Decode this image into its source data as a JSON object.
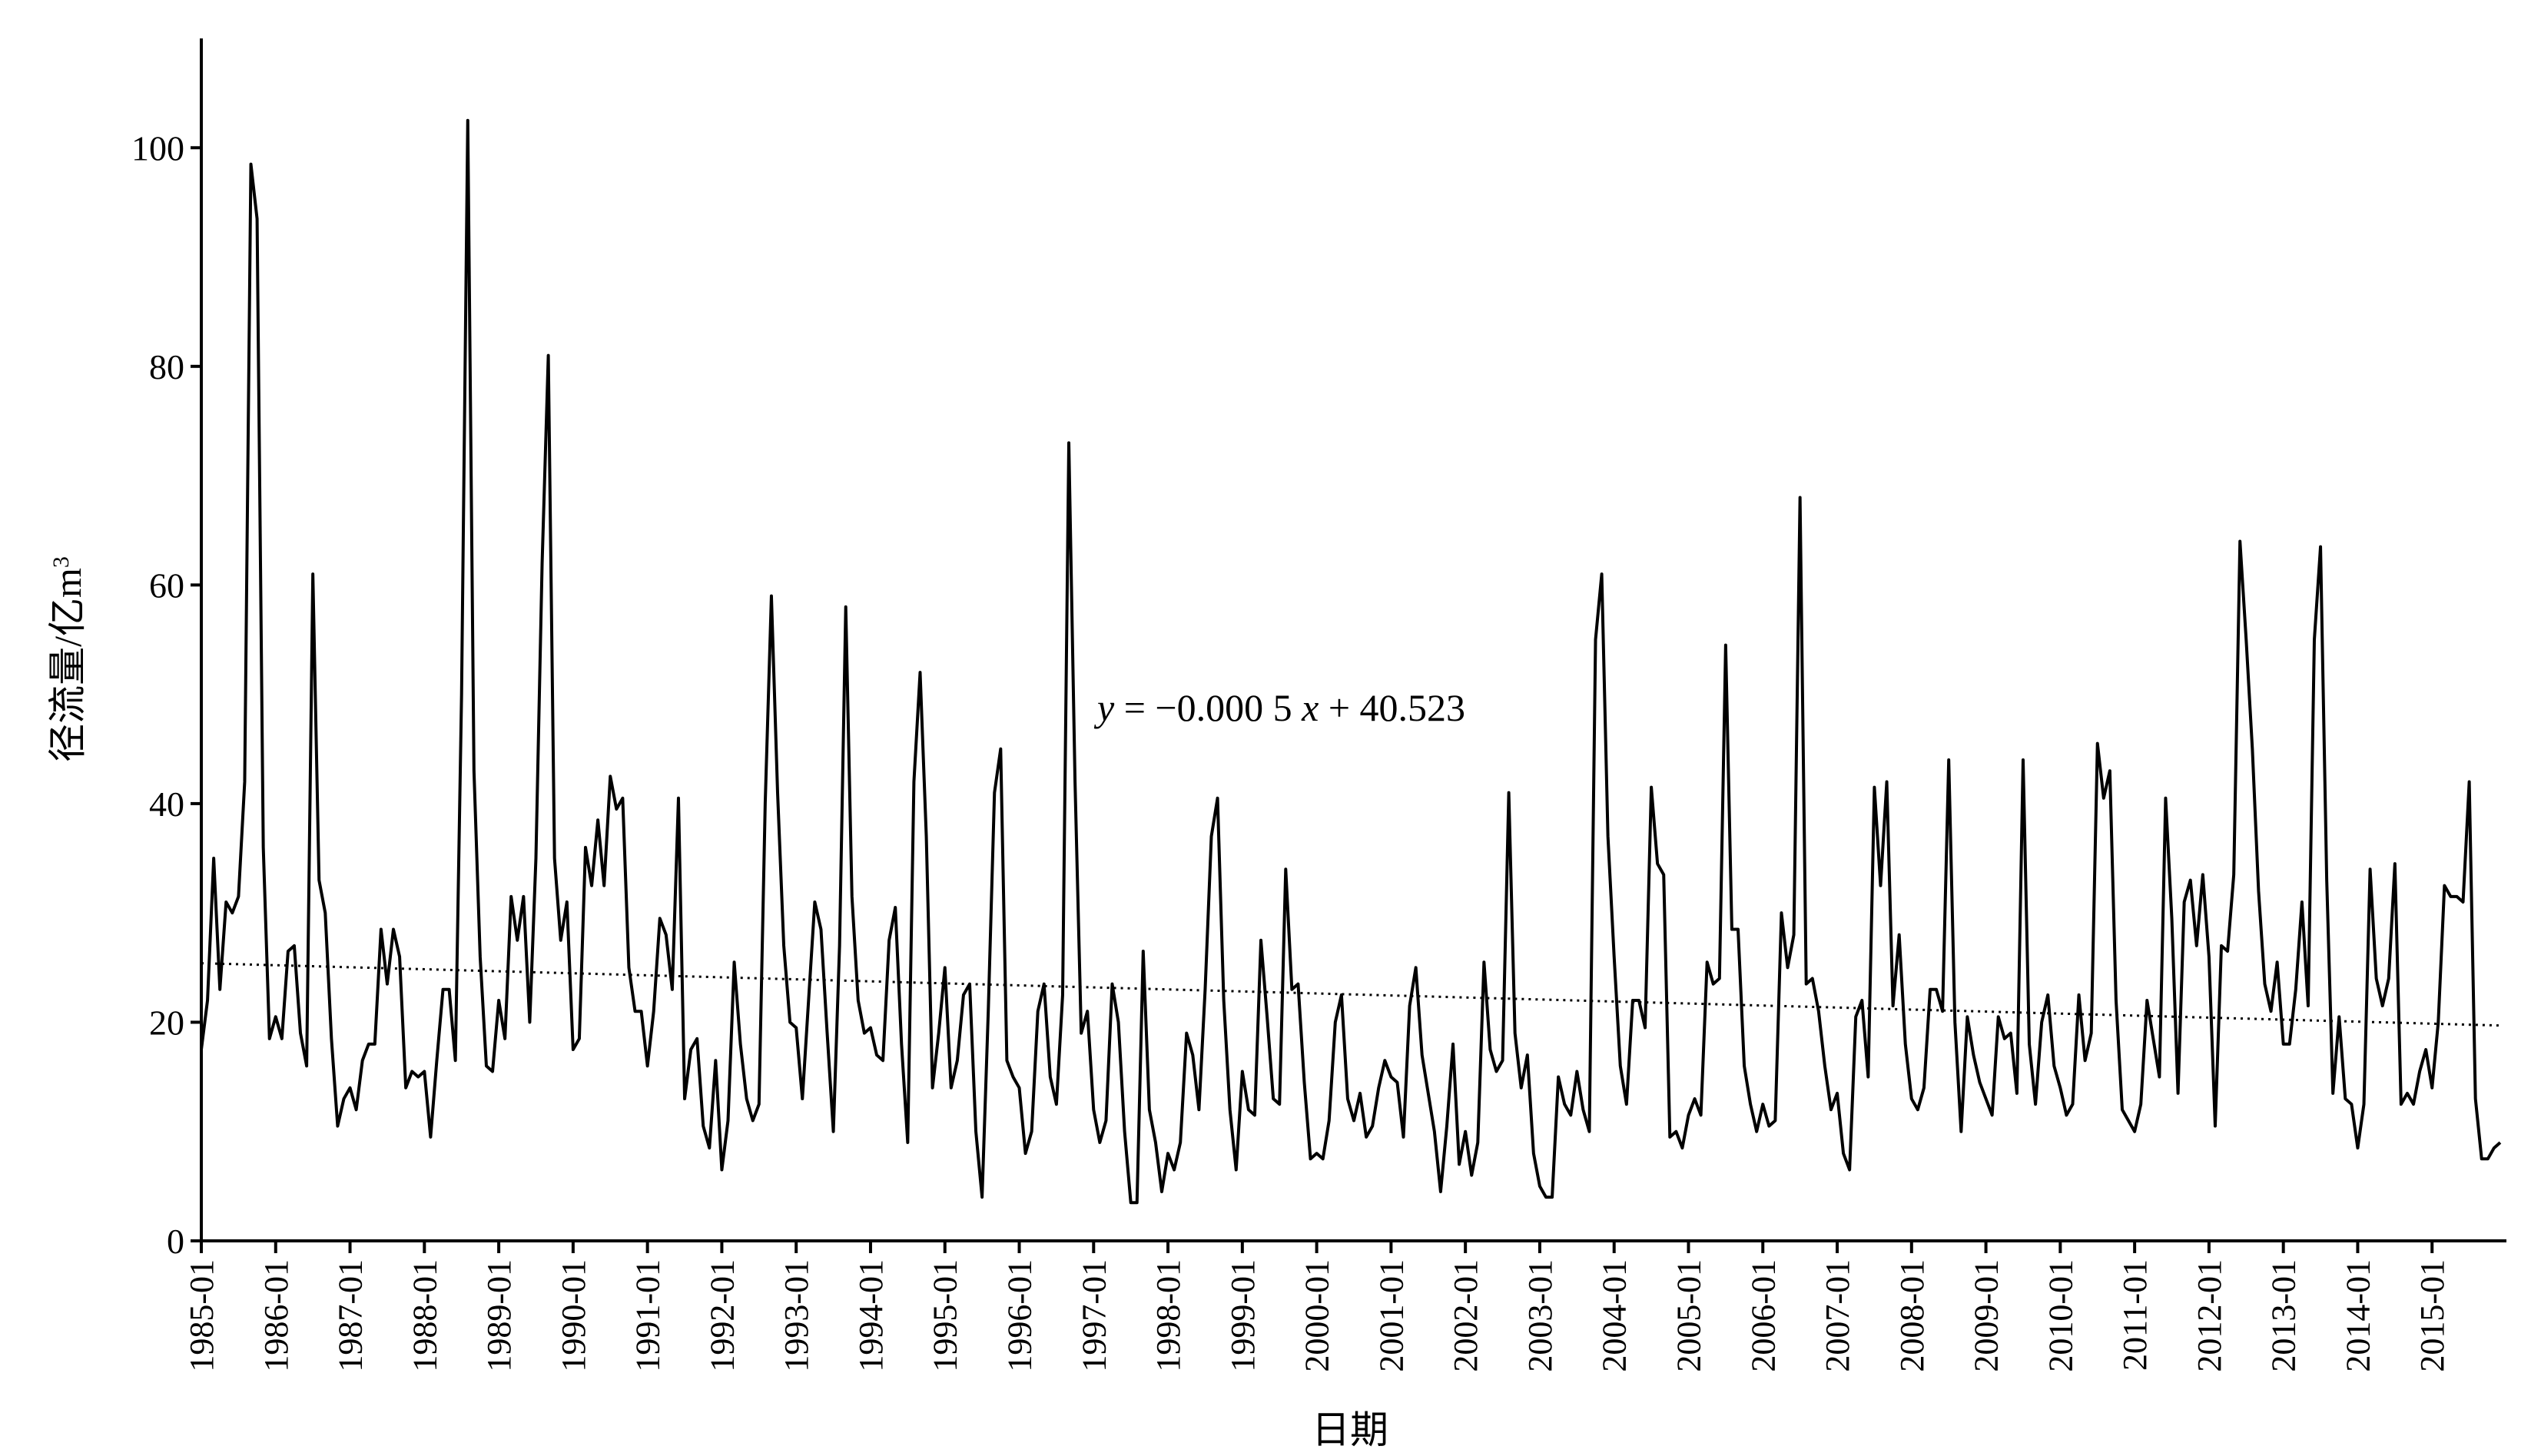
{
  "chart_data": {
    "type": "line",
    "title": "",
    "xlabel": "日期",
    "ylabel": "径流量/亿m³",
    "ylabel_main": "径流量/亿m",
    "ylabel_sup": "3",
    "equation_y": "y",
    "equation_rest": " = −0.000 5 ",
    "equation_x": "x",
    "equation_tail": " + 40.523",
    "ylim": [
      0,
      110
    ],
    "yticks": [
      "0",
      "20",
      "40",
      "60",
      "80",
      "100"
    ],
    "x_start": "1985-01",
    "x_end": "2015-12",
    "xticks": [
      "1985-01",
      "1986-01",
      "1987-01",
      "1988-01",
      "1989-01",
      "1990-01",
      "1991-01",
      "1992-01",
      "1993-01",
      "1994-01",
      "1995-01",
      "1996-01",
      "1997-01",
      "1998-01",
      "1999-01",
      "2000-01",
      "2001-01",
      "2002-01",
      "2003-01",
      "2004-01",
      "2005-01",
      "2006-01",
      "2007-01",
      "2008-01",
      "2009-01",
      "2010-01",
      "2011-01",
      "2012-01",
      "2013-01",
      "2014-01",
      "2015-01"
    ],
    "grid": false,
    "legend": "none",
    "series": [
      {
        "values": [
          17.5,
          22,
          35,
          23,
          31,
          30,
          31.5,
          42,
          98.5,
          93.5,
          36,
          18.5,
          20.5,
          18.5,
          26.5,
          27,
          19,
          16,
          61,
          33,
          30,
          18.5,
          10.5,
          13,
          14,
          12,
          16.5,
          18,
          18,
          28.5,
          23.5,
          28.5,
          26,
          14,
          15.5,
          15,
          15.5,
          9.5,
          16.5,
          23,
          23,
          16.5,
          50,
          102.5,
          43,
          26,
          16,
          15.5,
          22,
          18.5,
          31.5,
          27.5,
          31.5,
          20,
          35,
          62,
          81,
          35,
          27.5,
          31,
          17.5,
          18.5,
          36,
          32.5,
          38.5,
          32.5,
          42.5,
          39.5,
          40.5,
          25,
          21,
          21,
          16,
          21,
          29.5,
          28,
          23,
          40.5,
          13,
          17.5,
          18.5,
          10.5,
          8.5,
          16.5,
          6.5,
          11,
          25.5,
          18,
          13,
          11,
          12.5,
          40,
          59,
          41,
          27,
          20,
          19.5,
          13,
          22,
          31,
          28.5,
          19,
          10,
          27,
          58,
          31.5,
          22,
          19,
          19.5,
          17,
          16.5,
          27.5,
          30.5,
          18,
          9,
          42,
          52,
          37,
          14,
          19,
          25,
          14,
          16.5,
          22.5,
          23.5,
          10,
          4,
          21,
          41,
          45,
          16.5,
          15,
          14,
          8,
          10,
          21,
          23.5,
          15,
          12.5,
          22.5,
          73,
          42,
          19,
          21,
          12,
          9,
          11,
          23.5,
          20,
          10,
          3.5,
          3.5,
          26.5,
          12,
          9,
          4.5,
          8,
          6.5,
          9,
          19,
          17,
          12,
          23,
          37,
          40.5,
          22,
          12,
          6.5,
          15.5,
          12,
          11.5,
          27.5,
          20.5,
          13,
          12.5,
          34,
          23,
          23.5,
          14.5,
          7.5,
          8,
          7.5,
          11,
          20,
          22.5,
          13,
          11,
          13.5,
          9.5,
          10.5,
          14,
          16.5,
          15,
          14.5,
          9.5,
          21.5,
          25,
          17,
          13.5,
          10,
          4.5,
          10.5,
          18,
          7,
          10,
          6,
          9,
          25.5,
          17.5,
          15.5,
          16.5,
          41,
          19,
          14,
          17,
          8,
          5,
          4,
          4,
          15,
          12.5,
          11.5,
          15.5,
          12,
          10,
          55,
          61,
          37,
          26,
          16,
          12.5,
          22,
          22,
          19.5,
          41.5,
          34.5,
          33.5,
          9.5,
          10,
          8.5,
          11.5,
          13,
          11.5,
          25.5,
          23.5,
          24,
          54.5,
          28.5,
          28.5,
          16,
          12.5,
          10,
          12.5,
          10.5,
          11,
          30,
          25,
          28,
          68,
          23.5,
          24,
          21,
          16,
          12,
          13.5,
          8,
          6.5,
          20.5,
          22,
          15,
          41.5,
          32.5,
          42,
          21.5,
          28,
          18,
          13,
          12,
          14,
          23,
          23,
          21,
          44,
          20,
          10,
          20.5,
          17,
          14.5,
          13,
          11.5,
          20.5,
          18.5,
          19,
          13.5,
          44,
          18,
          12.5,
          20,
          22.5,
          16,
          14,
          11.5,
          12.5,
          22.5,
          16.5,
          19,
          45.5,
          40.5,
          43,
          22,
          12,
          11,
          10,
          12.5,
          22,
          18.5,
          15,
          40.5,
          29.5,
          13.5,
          31,
          33,
          27,
          33.5,
          26,
          10.5,
          27,
          26.5,
          33.5,
          64,
          55,
          45,
          32,
          23.5,
          21,
          25.5,
          18,
          18,
          23,
          31,
          21.5,
          55,
          63.5,
          33,
          13.5,
          20.5,
          13,
          12.5,
          8.5,
          12.5,
          34,
          24,
          21.5,
          24,
          34.5,
          12.5,
          13.5,
          12.5,
          15.5,
          17.5,
          14,
          20,
          32.5,
          31.5,
          31.5,
          31,
          42,
          13,
          7.5,
          7.5,
          8.5,
          9
        ]
      }
    ],
    "trendline": {
      "style": "dotted",
      "slope_per_day": -0.0005,
      "intercept": 40.523,
      "y_start": 25.4,
      "y_end": 19.7
    }
  }
}
